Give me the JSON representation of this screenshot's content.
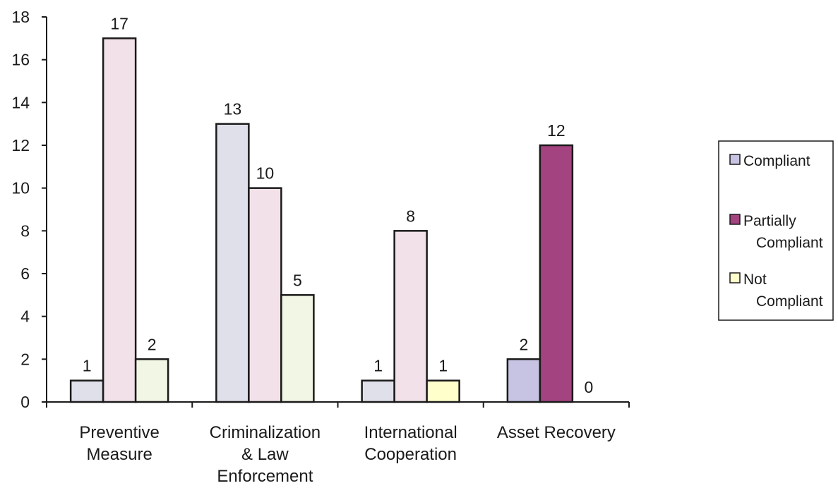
{
  "chart_data": {
    "type": "bar",
    "title": "",
    "xlabel": "",
    "ylabel": "",
    "ylim": [
      0,
      18
    ],
    "yticks": [
      0,
      2,
      4,
      6,
      8,
      10,
      12,
      14,
      16,
      18
    ],
    "grid": false,
    "legend_position": "right",
    "categories": [
      [
        "Preventive",
        "Measure"
      ],
      [
        "Criminalization",
        "& Law",
        "Enforcement"
      ],
      [
        "International",
        "Cooperation"
      ],
      [
        "Asset Recovery"
      ]
    ],
    "series": [
      {
        "name": "Compliant",
        "values": [
          1,
          13,
          1,
          2
        ]
      },
      {
        "name": "Partially Compliant",
        "values": [
          17,
          10,
          8,
          12
        ]
      },
      {
        "name": "Not Compliant",
        "values": [
          2,
          5,
          1,
          0
        ]
      }
    ],
    "bar_colors": [
      [
        "#e0e0ea",
        "#f2e1e9",
        "#f2f6e4"
      ],
      [
        "#e0e0ea",
        "#f2e1e9",
        "#f2f6e4"
      ],
      [
        "#e0e0ea",
        "#f2e1e9",
        "#ffffcc"
      ],
      [
        "#c6c4e2",
        "#a3437f",
        "#f2f6e4"
      ]
    ],
    "legend_colors": [
      "#c6c4e2",
      "#a3437f",
      "#ffffcc"
    ],
    "legend_lines": [
      [
        "Compliant"
      ],
      [
        "Partially",
        "Compliant"
      ],
      [
        "Not",
        "Compliant"
      ]
    ]
  }
}
